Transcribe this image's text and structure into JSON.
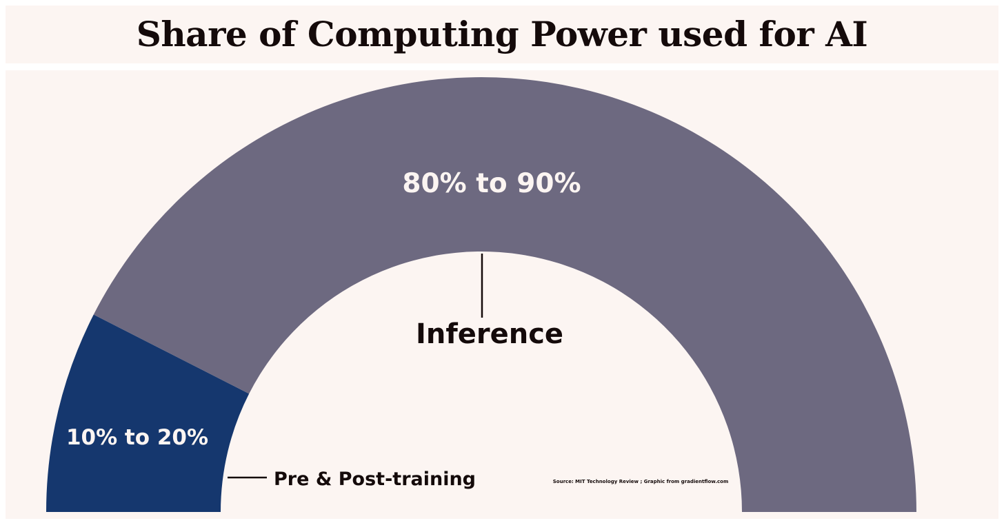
{
  "chart_data": {
    "type": "pie",
    "variant": "semicircle-donut",
    "title": "Share of Computing Power used for AI",
    "slices": [
      {
        "label": "Pre & Post-training",
        "value_text": "10% to 20%",
        "value": 15,
        "color": "#15376e"
      },
      {
        "label": "Inference",
        "value_text": "80% to 90%",
        "value": 85,
        "color": "#6d6980"
      }
    ],
    "source": "Source:  MIT Technology Review ;   Graphic from gradientflow.com",
    "background": "#fcf5f2",
    "label_color_on_slice": "#fcf5f2",
    "label_color_callout": "#140a0a"
  }
}
